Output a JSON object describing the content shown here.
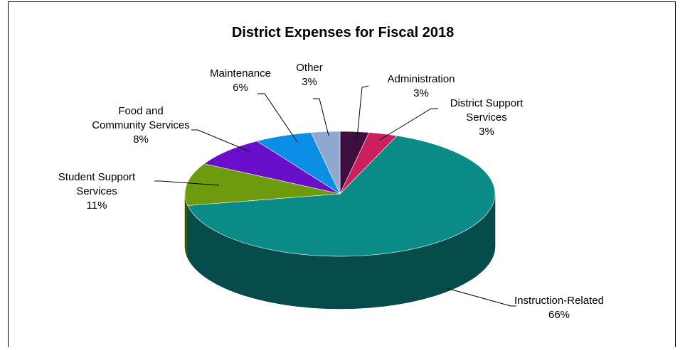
{
  "chart_data": {
    "type": "pie",
    "title": "District Expenses for Fiscal 2018",
    "slices": [
      {
        "label": "Administration",
        "value": 3,
        "value_label": "3%",
        "color": "#3d0f3f"
      },
      {
        "label": "District Support Services",
        "value": 3,
        "value_label": "3%",
        "color": "#cc1f5e"
      },
      {
        "label": "Instruction-Related",
        "value": 66,
        "value_label": "66%",
        "color": "#0b8b87"
      },
      {
        "label": "Student Support Services",
        "value": 11,
        "value_label": "11%",
        "color": "#6e9a0d"
      },
      {
        "label": "Food and Community Services",
        "value": 8,
        "value_label": "8%",
        "color": "#6a0fc9"
      },
      {
        "label": "Maintenance",
        "value": 6,
        "value_label": "6%",
        "color": "#0b8fe6"
      },
      {
        "label": "Other",
        "value": 3,
        "value_label": "3%",
        "color": "#8fa8cf"
      }
    ],
    "legend": "none",
    "style": "3d-pie"
  }
}
